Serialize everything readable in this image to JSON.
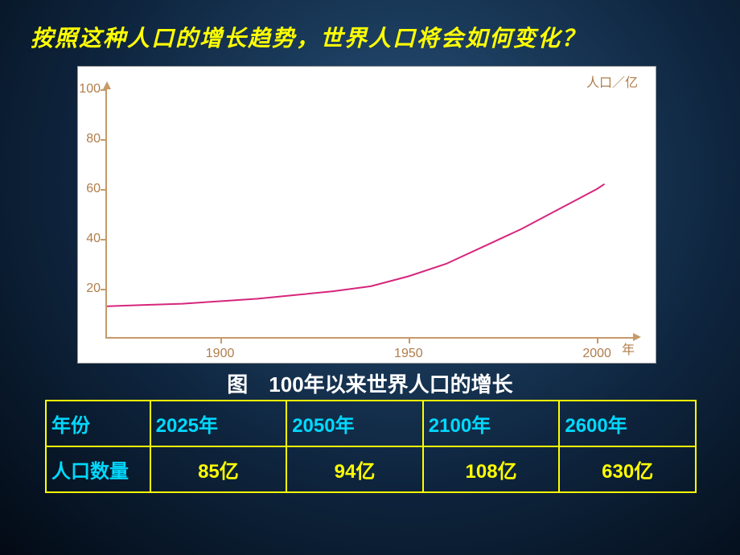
{
  "title": "按照这种人口的增长趋势，世界人口将会如何变化？",
  "chart": {
    "type": "line",
    "y_axis_label": "人口／亿",
    "x_axis_label": "年",
    "background_color": "#ffffff",
    "axis_color": "#c69a6a",
    "tick_label_color": "#b07d4a",
    "tick_fontsize": 16,
    "line_color": "#d6267c",
    "line_width": 2,
    "xlim": [
      1870,
      2010
    ],
    "ylim": [
      0,
      100
    ],
    "y_ticks": [
      20,
      40,
      60,
      80,
      100
    ],
    "x_ticks": [
      1900,
      1950,
      2000
    ],
    "series": [
      {
        "x": 1870,
        "y": 13
      },
      {
        "x": 1880,
        "y": 13.5
      },
      {
        "x": 1890,
        "y": 14
      },
      {
        "x": 1900,
        "y": 15
      },
      {
        "x": 1910,
        "y": 16
      },
      {
        "x": 1920,
        "y": 17.5
      },
      {
        "x": 1930,
        "y": 19
      },
      {
        "x": 1940,
        "y": 21
      },
      {
        "x": 1950,
        "y": 25
      },
      {
        "x": 1960,
        "y": 30
      },
      {
        "x": 1970,
        "y": 37
      },
      {
        "x": 1980,
        "y": 44
      },
      {
        "x": 1990,
        "y": 52
      },
      {
        "x": 2000,
        "y": 60
      },
      {
        "x": 2002,
        "y": 62
      }
    ]
  },
  "caption": "图　100年以来世界人口的增长",
  "table": {
    "border_color": "#ffff00",
    "header_text_color": "#00d9ff",
    "value_text_color": "#ffff00",
    "fontsize": 24,
    "row_header_year": "年份",
    "row_header_pop": "人口数量",
    "columns": [
      {
        "year": "2025年",
        "pop": "85亿"
      },
      {
        "year": "2050年",
        "pop": "94亿"
      },
      {
        "year": "2100年",
        "pop": "108亿"
      },
      {
        "year": "2600年",
        "pop": "630亿"
      }
    ]
  }
}
